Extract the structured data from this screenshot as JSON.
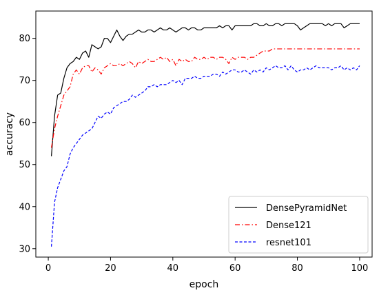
{
  "chart_data": {
    "type": "line",
    "xlabel": "epoch",
    "ylabel": "accuracy",
    "xlim": [
      -4,
      104
    ],
    "ylim": [
      28,
      86.5
    ],
    "xticks": [
      0,
      20,
      40,
      60,
      80,
      100
    ],
    "yticks": [
      30,
      40,
      50,
      60,
      70,
      80
    ],
    "grid": false,
    "legend_position": "lower right",
    "series": [
      {
        "name": "DensePyramidNet",
        "color": "#000000",
        "dash": "solid",
        "x": [
          1,
          2,
          3,
          4,
          5,
          6,
          7,
          8,
          9,
          10,
          11,
          12,
          13,
          14,
          15,
          16,
          17,
          18,
          19,
          20,
          21,
          22,
          23,
          24,
          25,
          26,
          27,
          28,
          29,
          30,
          31,
          32,
          33,
          34,
          35,
          36,
          37,
          38,
          39,
          40,
          41,
          42,
          43,
          44,
          45,
          46,
          47,
          48,
          49,
          50,
          51,
          52,
          53,
          54,
          55,
          56,
          57,
          58,
          59,
          60,
          61,
          62,
          63,
          64,
          65,
          66,
          67,
          68,
          69,
          70,
          71,
          72,
          73,
          74,
          75,
          76,
          77,
          78,
          79,
          80,
          81,
          82,
          83,
          84,
          85,
          86,
          87,
          88,
          89,
          90,
          91,
          92,
          93,
          94,
          95,
          96,
          97,
          98,
          99,
          100
        ],
        "y": [
          52.0,
          61.5,
          66.5,
          67.0,
          70.5,
          73.0,
          74.0,
          74.5,
          75.5,
          75.0,
          76.5,
          77.0,
          75.5,
          78.5,
          78.0,
          77.5,
          78.0,
          80.0,
          80.0,
          79.0,
          80.5,
          82.0,
          80.5,
          79.5,
          80.5,
          81.0,
          81.0,
          81.5,
          82.0,
          81.5,
          81.5,
          82.0,
          82.0,
          81.5,
          82.0,
          82.5,
          82.0,
          82.0,
          82.5,
          82.0,
          81.5,
          82.0,
          82.5,
          82.5,
          82.0,
          82.5,
          82.5,
          82.0,
          82.0,
          82.5,
          82.5,
          82.5,
          82.5,
          82.5,
          83.0,
          82.5,
          83.0,
          83.0,
          82.0,
          83.0,
          83.0,
          83.0,
          83.0,
          83.0,
          83.0,
          83.5,
          83.5,
          83.0,
          83.0,
          83.5,
          83.0,
          83.0,
          83.5,
          83.5,
          83.0,
          83.5,
          83.5,
          83.5,
          83.5,
          83.0,
          82.0,
          82.5,
          83.0,
          83.5,
          83.5,
          83.5,
          83.5,
          83.5,
          83.0,
          83.5,
          83.0,
          83.5,
          83.5,
          83.5,
          82.5,
          83.0,
          83.5,
          83.5,
          83.5,
          83.5
        ]
      },
      {
        "name": "Dense121",
        "color": "#ff0000",
        "dash": "dashdot",
        "x": [
          1,
          2,
          3,
          4,
          5,
          6,
          7,
          8,
          9,
          10,
          11,
          12,
          13,
          14,
          15,
          16,
          17,
          18,
          19,
          20,
          21,
          22,
          23,
          24,
          25,
          26,
          27,
          28,
          29,
          30,
          31,
          32,
          33,
          34,
          35,
          36,
          37,
          38,
          39,
          40,
          41,
          42,
          43,
          44,
          45,
          46,
          47,
          48,
          49,
          50,
          51,
          52,
          53,
          54,
          55,
          56,
          57,
          58,
          59,
          60,
          61,
          62,
          63,
          64,
          65,
          66,
          67,
          68,
          69,
          70,
          71,
          72,
          73,
          74,
          75,
          76,
          77,
          78,
          79,
          80,
          81,
          82,
          83,
          84,
          85,
          86,
          87,
          88,
          89,
          90,
          91,
          92,
          93,
          94,
          95,
          96,
          97,
          98,
          99,
          100
        ],
        "y": [
          54.0,
          58.5,
          61.5,
          64.0,
          66.5,
          67.5,
          68.5,
          71.5,
          72.5,
          71.5,
          73.0,
          73.5,
          73.5,
          72.0,
          73.0,
          72.5,
          71.5,
          73.0,
          73.5,
          74.0,
          73.5,
          73.5,
          74.0,
          73.5,
          74.0,
          74.5,
          74.0,
          73.0,
          74.5,
          74.0,
          74.5,
          75.0,
          74.5,
          74.5,
          75.0,
          75.5,
          75.0,
          75.5,
          74.5,
          75.0,
          73.5,
          75.0,
          74.5,
          75.0,
          74.5,
          74.5,
          75.5,
          75.0,
          75.0,
          75.5,
          75.0,
          75.5,
          75.5,
          75.0,
          75.5,
          75.5,
          75.0,
          74.0,
          75.5,
          75.0,
          75.5,
          75.5,
          75.5,
          75.0,
          75.5,
          75.5,
          76.0,
          76.5,
          77.0,
          77.0,
          77.0,
          77.5,
          77.5,
          77.5,
          77.5,
          77.5,
          77.5,
          77.5,
          77.5,
          77.5,
          77.5,
          77.5,
          77.5,
          77.5,
          77.5,
          77.5,
          77.5,
          77.5,
          77.5,
          77.5,
          77.5,
          77.5,
          77.5,
          77.5,
          77.5,
          77.5,
          77.5,
          77.5,
          77.5,
          77.5
        ]
      },
      {
        "name": "resnet101",
        "color": "#0000ff",
        "dash": "dashed",
        "x": [
          1,
          2,
          3,
          4,
          5,
          6,
          7,
          8,
          9,
          10,
          11,
          12,
          13,
          14,
          15,
          16,
          17,
          18,
          19,
          20,
          21,
          22,
          23,
          24,
          25,
          26,
          27,
          28,
          29,
          30,
          31,
          32,
          33,
          34,
          35,
          36,
          37,
          38,
          39,
          40,
          41,
          42,
          43,
          44,
          45,
          46,
          47,
          48,
          49,
          50,
          51,
          52,
          53,
          54,
          55,
          56,
          57,
          58,
          59,
          60,
          61,
          62,
          63,
          64,
          65,
          66,
          67,
          68,
          69,
          70,
          71,
          72,
          73,
          74,
          75,
          76,
          77,
          78,
          79,
          80,
          81,
          82,
          83,
          84,
          85,
          86,
          87,
          88,
          89,
          90,
          91,
          92,
          93,
          94,
          95,
          96,
          97,
          98,
          99,
          100
        ],
        "y": [
          30.5,
          41.0,
          44.5,
          46.5,
          48.5,
          49.5,
          52.5,
          54.0,
          55.0,
          56.0,
          57.0,
          57.5,
          58.0,
          58.5,
          60.0,
          61.5,
          61.0,
          62.0,
          62.5,
          62.0,
          63.5,
          64.0,
          64.5,
          65.0,
          65.0,
          65.5,
          66.5,
          66.0,
          66.5,
          67.0,
          67.5,
          68.5,
          68.5,
          69.0,
          68.5,
          69.0,
          69.0,
          69.0,
          69.5,
          70.0,
          69.5,
          70.0,
          69.0,
          70.5,
          70.5,
          70.5,
          71.0,
          70.5,
          70.5,
          71.0,
          71.0,
          71.0,
          71.5,
          71.5,
          71.0,
          72.0,
          71.5,
          72.0,
          72.5,
          72.5,
          72.0,
          72.0,
          72.5,
          72.0,
          71.5,
          72.5,
          72.0,
          72.5,
          72.0,
          73.0,
          72.5,
          73.0,
          73.5,
          73.0,
          73.0,
          73.5,
          72.5,
          73.5,
          72.5,
          72.0,
          72.5,
          72.5,
          73.0,
          72.5,
          73.0,
          73.5,
          73.0,
          73.0,
          73.0,
          73.0,
          72.5,
          73.0,
          73.0,
          73.5,
          72.5,
          73.0,
          72.5,
          73.0,
          72.5,
          73.5
        ]
      }
    ]
  }
}
